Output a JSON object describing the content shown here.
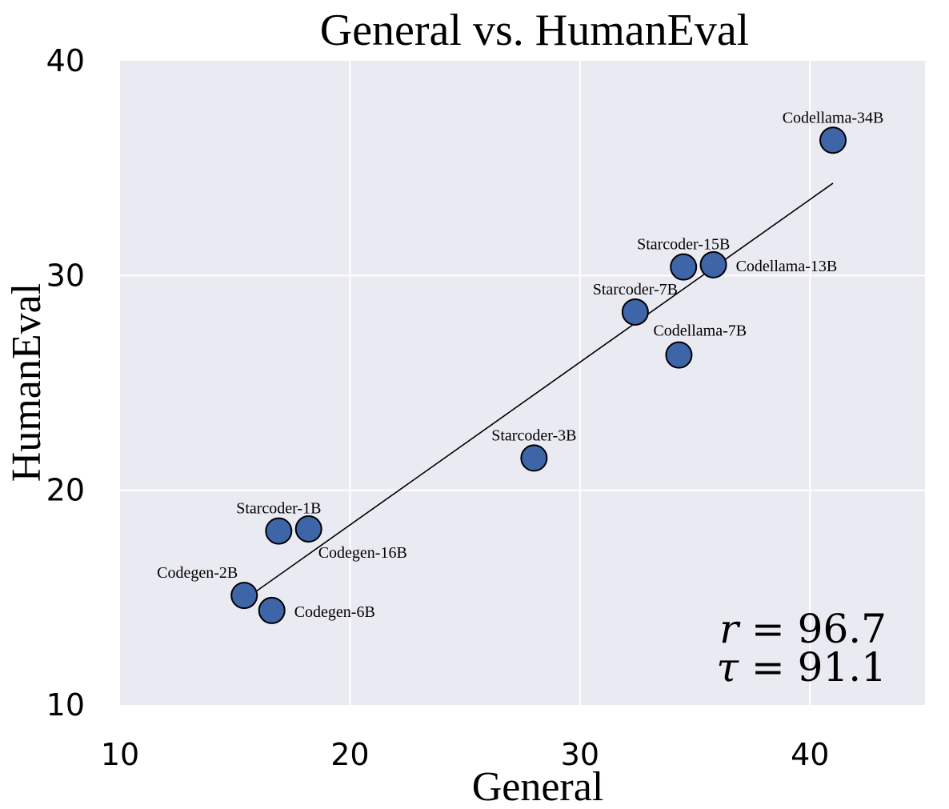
{
  "chart_data": {
    "type": "scatter",
    "title": "General vs. HumanEval",
    "xlabel": "General",
    "ylabel": "HumanEval",
    "xlim": [
      10,
      45
    ],
    "ylim": [
      10,
      40
    ],
    "xticks": [
      10,
      20,
      30,
      40
    ],
    "yticks": [
      10,
      20,
      30,
      40
    ],
    "xtick_labels": [
      "10",
      "20",
      "30",
      "40"
    ],
    "ytick_labels": [
      "10",
      "20",
      "30",
      "40"
    ],
    "grid": true,
    "colors": {
      "background": "#eaeaf2",
      "grid": "#ffffff",
      "point": "#3e65a8",
      "point_edge": "#000000",
      "fit_line": "#000000"
    },
    "points": [
      {
        "label": "Codellama-34B",
        "x": 41.0,
        "y": 36.3,
        "label_pos": "above"
      },
      {
        "label": "Starcoder-15B",
        "x": 34.5,
        "y": 30.4,
        "label_pos": "above"
      },
      {
        "label": "Codellama-13B",
        "x": 35.8,
        "y": 30.5,
        "label_pos": "right"
      },
      {
        "label": "Starcoder-7B",
        "x": 32.4,
        "y": 28.3,
        "label_pos": "above"
      },
      {
        "label": "Codellama-7B",
        "x": 34.3,
        "y": 26.3,
        "label_pos": "above-right"
      },
      {
        "label": "Starcoder-3B",
        "x": 28.0,
        "y": 21.5,
        "label_pos": "above"
      },
      {
        "label": "Starcoder-1B",
        "x": 16.9,
        "y": 18.1,
        "label_pos": "above"
      },
      {
        "label": "Codegen-16B",
        "x": 18.2,
        "y": 18.2,
        "label_pos": "below-right"
      },
      {
        "label": "Codegen-2B",
        "x": 15.4,
        "y": 15.1,
        "label_pos": "above-left"
      },
      {
        "label": "Codegen-6B",
        "x": 16.6,
        "y": 14.4,
        "label_pos": "right"
      }
    ],
    "fit_line": {
      "x": [
        15.4,
        41.0
      ],
      "y": [
        14.9,
        34.3
      ]
    },
    "annotations": [
      {
        "symbol": "r",
        "text": " = 96.7"
      },
      {
        "symbol": "τ",
        "text": " = 91.1"
      }
    ]
  }
}
